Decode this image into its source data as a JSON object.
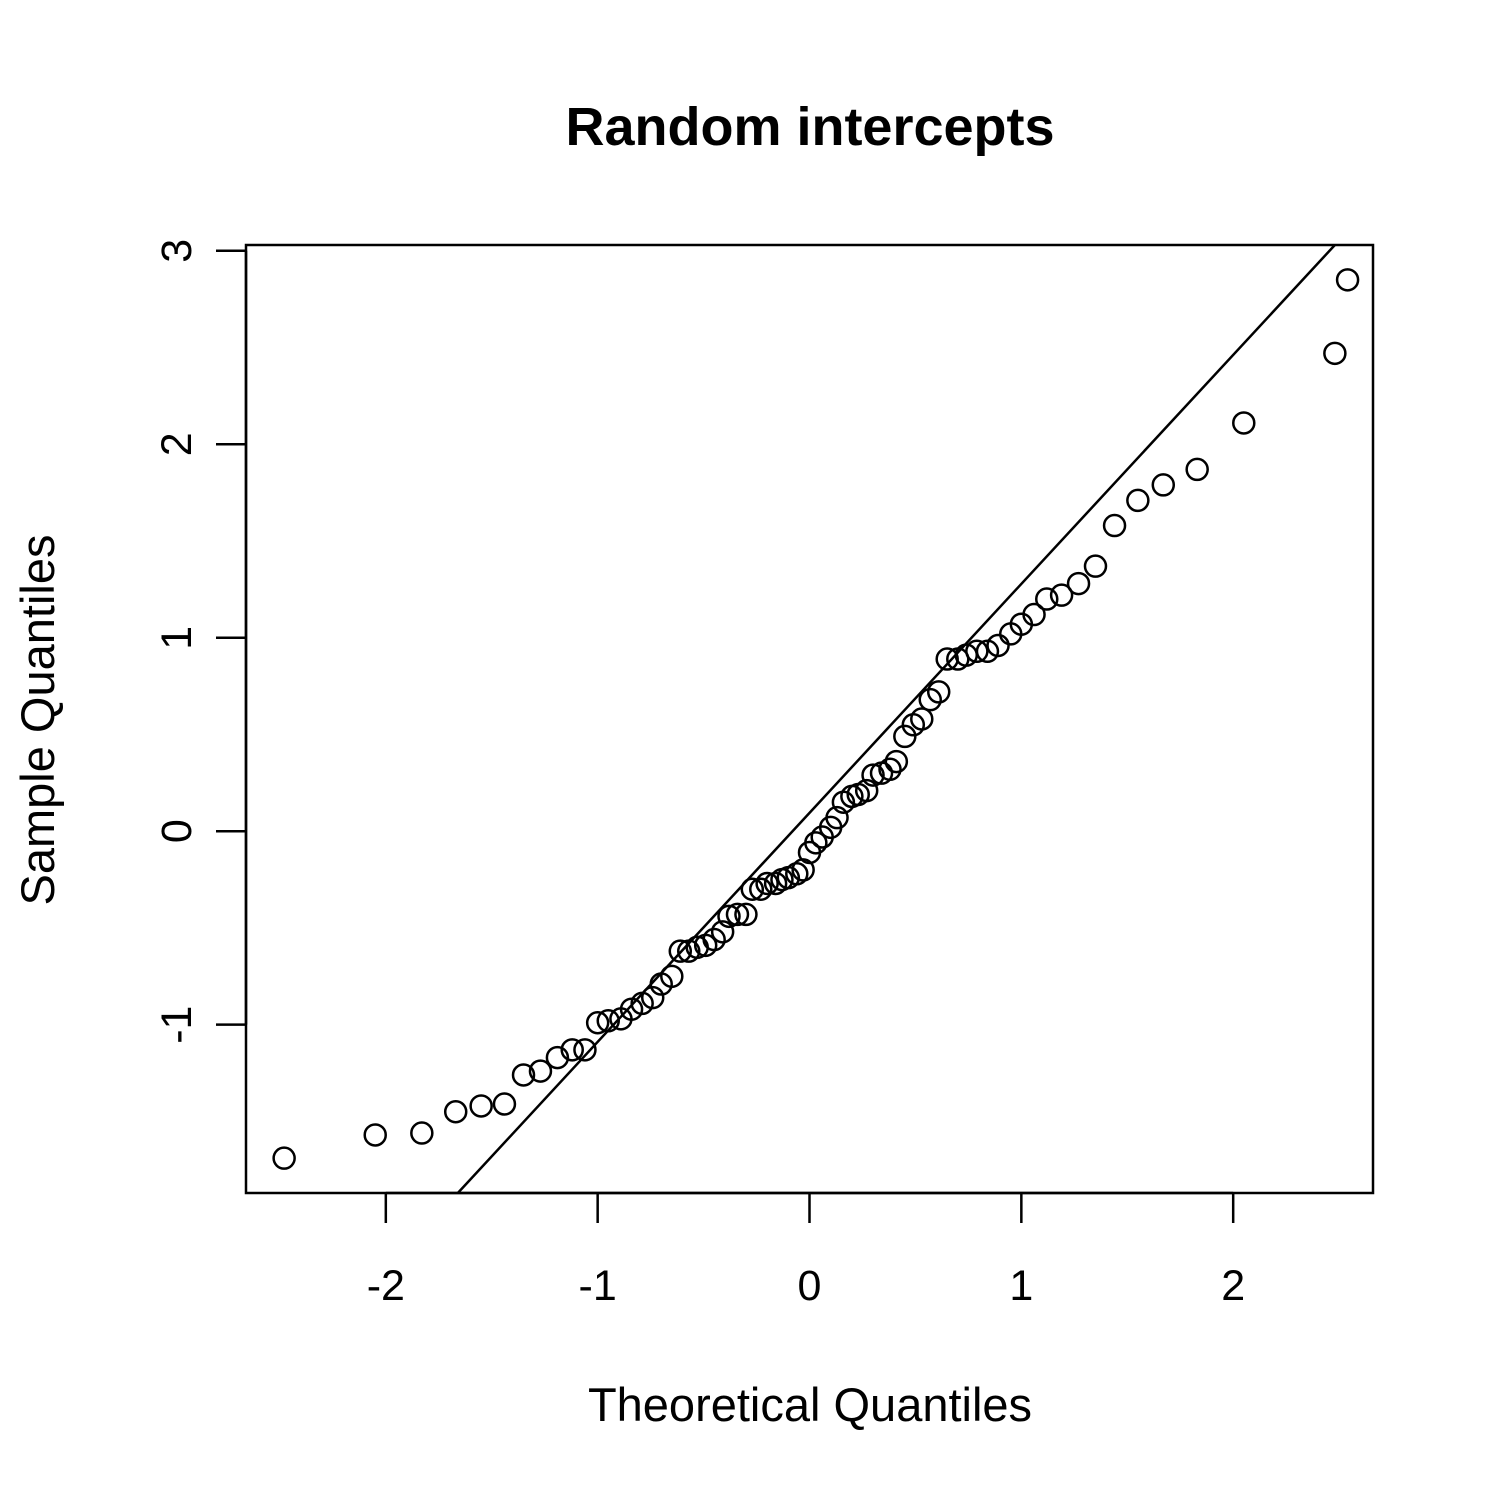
{
  "chart_data": {
    "type": "scatter",
    "title": "Random intercepts",
    "xlabel": "Theoretical Quantiles",
    "ylabel": "Sample Quantiles",
    "xlim": [
      -2.66,
      2.66
    ],
    "ylim": [
      -1.87,
      3.03
    ],
    "xticks": [
      -2,
      -1,
      0,
      1,
      2
    ],
    "xtick_labels": [
      "-2",
      "-1",
      "0",
      "1",
      "2"
    ],
    "yticks": [
      -1,
      0,
      1,
      2,
      3
    ],
    "ytick_labels": [
      "-1",
      "0",
      "1",
      "2",
      "3"
    ],
    "grid": false,
    "reference_line": {
      "x": [
        -1.66,
        2.48
      ],
      "y": [
        -1.87,
        3.03
      ]
    },
    "points": [
      {
        "x": -2.48,
        "y": -1.69
      },
      {
        "x": -2.05,
        "y": -1.57
      },
      {
        "x": -1.83,
        "y": -1.56
      },
      {
        "x": -1.67,
        "y": -1.45
      },
      {
        "x": -1.55,
        "y": -1.42
      },
      {
        "x": -1.44,
        "y": -1.41
      },
      {
        "x": -1.35,
        "y": -1.26
      },
      {
        "x": -1.27,
        "y": -1.24
      },
      {
        "x": -1.19,
        "y": -1.17
      },
      {
        "x": -1.12,
        "y": -1.13
      },
      {
        "x": -1.06,
        "y": -1.13
      },
      {
        "x": -1.0,
        "y": -0.99
      },
      {
        "x": -0.95,
        "y": -0.98
      },
      {
        "x": -0.89,
        "y": -0.97
      },
      {
        "x": -0.84,
        "y": -0.92
      },
      {
        "x": -0.79,
        "y": -0.89
      },
      {
        "x": -0.74,
        "y": -0.86
      },
      {
        "x": -0.7,
        "y": -0.79
      },
      {
        "x": -0.65,
        "y": -0.75
      },
      {
        "x": -0.61,
        "y": -0.62
      },
      {
        "x": -0.57,
        "y": -0.62
      },
      {
        "x": -0.53,
        "y": -0.6
      },
      {
        "x": -0.49,
        "y": -0.59
      },
      {
        "x": -0.45,
        "y": -0.56
      },
      {
        "x": -0.41,
        "y": -0.52
      },
      {
        "x": -0.38,
        "y": -0.44
      },
      {
        "x": -0.34,
        "y": -0.43
      },
      {
        "x": -0.3,
        "y": -0.43
      },
      {
        "x": -0.27,
        "y": -0.3
      },
      {
        "x": -0.23,
        "y": -0.3
      },
      {
        "x": -0.2,
        "y": -0.27
      },
      {
        "x": -0.16,
        "y": -0.27
      },
      {
        "x": -0.13,
        "y": -0.25
      },
      {
        "x": -0.1,
        "y": -0.24
      },
      {
        "x": -0.06,
        "y": -0.22
      },
      {
        "x": -0.03,
        "y": -0.2
      },
      {
        "x": 0.0,
        "y": -0.11
      },
      {
        "x": 0.03,
        "y": -0.06
      },
      {
        "x": 0.06,
        "y": -0.03
      },
      {
        "x": 0.1,
        "y": 0.02
      },
      {
        "x": 0.13,
        "y": 0.07
      },
      {
        "x": 0.16,
        "y": 0.15
      },
      {
        "x": 0.2,
        "y": 0.18
      },
      {
        "x": 0.23,
        "y": 0.19
      },
      {
        "x": 0.27,
        "y": 0.21
      },
      {
        "x": 0.3,
        "y": 0.29
      },
      {
        "x": 0.34,
        "y": 0.3
      },
      {
        "x": 0.38,
        "y": 0.32
      },
      {
        "x": 0.41,
        "y": 0.36
      },
      {
        "x": 0.45,
        "y": 0.49
      },
      {
        "x": 0.49,
        "y": 0.55
      },
      {
        "x": 0.53,
        "y": 0.58
      },
      {
        "x": 0.57,
        "y": 0.68
      },
      {
        "x": 0.61,
        "y": 0.72
      },
      {
        "x": 0.65,
        "y": 0.89
      },
      {
        "x": 0.7,
        "y": 0.89
      },
      {
        "x": 0.74,
        "y": 0.91
      },
      {
        "x": 0.79,
        "y": 0.93
      },
      {
        "x": 0.84,
        "y": 0.93
      },
      {
        "x": 0.89,
        "y": 0.96
      },
      {
        "x": 0.95,
        "y": 1.02
      },
      {
        "x": 1.0,
        "y": 1.07
      },
      {
        "x": 1.06,
        "y": 1.12
      },
      {
        "x": 1.12,
        "y": 1.2
      },
      {
        "x": 1.19,
        "y": 1.22
      },
      {
        "x": 1.27,
        "y": 1.28
      },
      {
        "x": 1.35,
        "y": 1.37
      },
      {
        "x": 1.44,
        "y": 1.58
      },
      {
        "x": 1.55,
        "y": 1.71
      },
      {
        "x": 1.67,
        "y": 1.79
      },
      {
        "x": 1.83,
        "y": 1.87
      },
      {
        "x": 2.05,
        "y": 2.11
      },
      {
        "x": 2.48,
        "y": 2.47
      },
      {
        "x": 2.54,
        "y": 2.85
      }
    ]
  }
}
